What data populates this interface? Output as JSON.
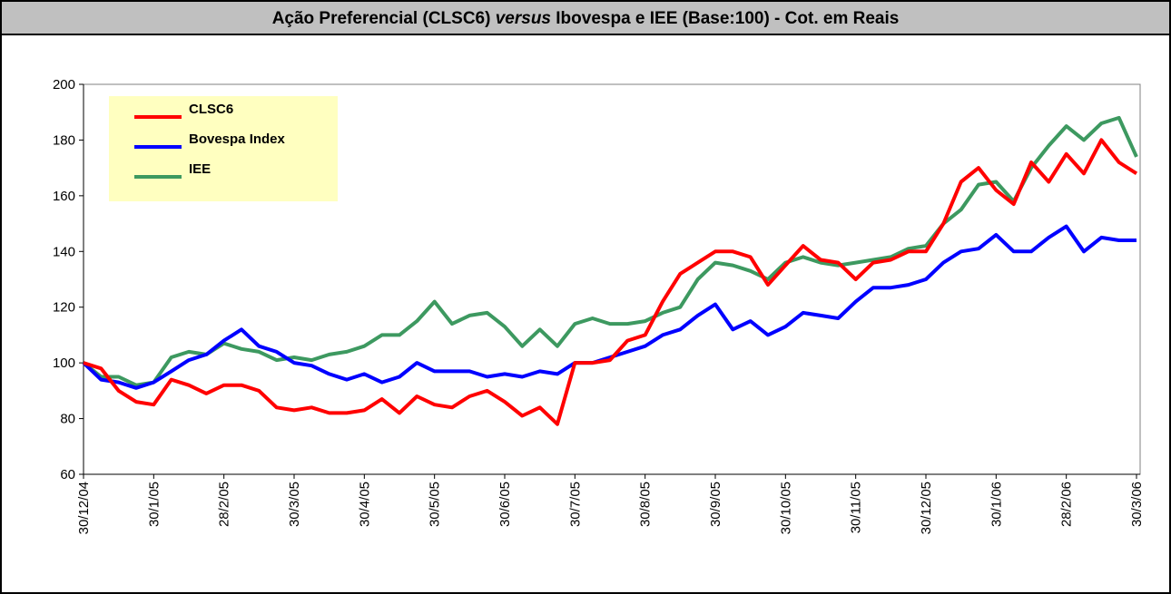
{
  "chart_data": {
    "type": "line",
    "title": [
      "Ação Preferencial (CLSC6) ",
      "versus",
      " Ibovespa e IEE (Base:100) - Cot. em Reais"
    ],
    "categories": [
      "30/12/04",
      null,
      null,
      null,
      "30/1/05",
      null,
      null,
      null,
      "28/2/05",
      null,
      null,
      null,
      "30/3/05",
      null,
      null,
      null,
      "30/4/05",
      null,
      null,
      null,
      "30/5/05",
      null,
      null,
      null,
      "30/6/05",
      null,
      null,
      null,
      "30/7/05",
      null,
      null,
      null,
      "30/8/05",
      null,
      null,
      null,
      "30/9/05",
      null,
      null,
      null,
      "30/10/05",
      null,
      null,
      null,
      "30/11/05",
      null,
      null,
      null,
      "30/12/05",
      null,
      null,
      null,
      "30/1/06",
      null,
      null,
      null,
      "28/2/06",
      null,
      null,
      null,
      "30/3/06"
    ],
    "series": [
      {
        "name": "CLSC6",
        "color": "#ff0000",
        "values": [
          100,
          98,
          90,
          86,
          85,
          94,
          92,
          89,
          92,
          92,
          90,
          84,
          83,
          84,
          82,
          82,
          83,
          87,
          82,
          88,
          85,
          84,
          88,
          90,
          86,
          81,
          84,
          78,
          100,
          100,
          101,
          108,
          110,
          122,
          132,
          136,
          140,
          140,
          138,
          128,
          135,
          142,
          137,
          136,
          130,
          136,
          137,
          140,
          140,
          150,
          165,
          170,
          162,
          157,
          172,
          165,
          175,
          168,
          180,
          172,
          168
        ]
      },
      {
        "name": "Bovespa Index",
        "color": "#0000ff",
        "values": [
          100,
          94,
          93,
          91,
          93,
          97,
          101,
          103,
          108,
          112,
          106,
          104,
          100,
          99,
          96,
          94,
          96,
          93,
          95,
          100,
          97,
          97,
          97,
          95,
          96,
          95,
          97,
          96,
          100,
          100,
          102,
          104,
          106,
          110,
          112,
          117,
          121,
          112,
          115,
          110,
          113,
          118,
          117,
          116,
          122,
          127,
          127,
          128,
          130,
          136,
          140,
          141,
          146,
          140,
          140,
          145,
          149,
          140,
          145,
          144,
          144
        ]
      },
      {
        "name": "IEE",
        "color": "#3d9960",
        "values": [
          100,
          95,
          95,
          92,
          93,
          102,
          104,
          103,
          107,
          105,
          104,
          101,
          102,
          101,
          103,
          104,
          106,
          110,
          110,
          115,
          122,
          114,
          117,
          118,
          113,
          106,
          112,
          106,
          114,
          116,
          114,
          114,
          115,
          118,
          120,
          130,
          136,
          135,
          133,
          130,
          136,
          138,
          136,
          135,
          136,
          137,
          138,
          141,
          142,
          150,
          155,
          164,
          165,
          158,
          170,
          178,
          185,
          180,
          186,
          188,
          174
        ]
      }
    ],
    "ylim": [
      60,
      200
    ],
    "yticks": [
      60,
      80,
      100,
      120,
      140,
      160,
      180,
      200
    ]
  }
}
